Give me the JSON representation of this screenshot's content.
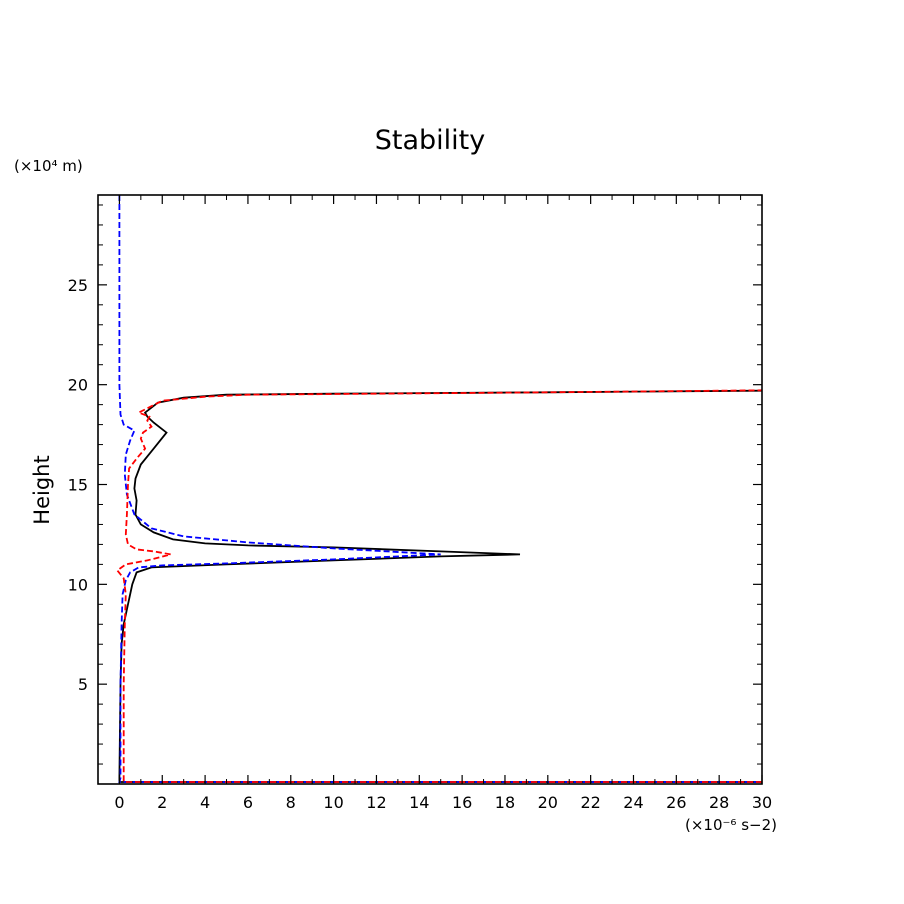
{
  "chart_data": {
    "type": "line",
    "title": "Stability",
    "ylabel": "Height",
    "ylabel_units": "(×10⁴ m)",
    "xlabel_units": "(×10⁻⁶ s−2)",
    "xlim": [
      -1,
      30
    ],
    "ylim": [
      0,
      29.5
    ],
    "x_ticks": [
      0,
      2,
      4,
      6,
      8,
      10,
      12,
      14,
      16,
      18,
      20,
      22,
      24,
      26,
      28,
      30
    ],
    "y_ticks": [
      5,
      10,
      15,
      20,
      25
    ],
    "grid": false,
    "legend": "none",
    "series": [
      {
        "style": "solid",
        "color": "#000000",
        "points": [
          [
            30,
            0.1
          ],
          [
            0,
            0.1
          ],
          [
            0,
            0.3
          ],
          [
            0.05,
            5
          ],
          [
            0.1,
            7
          ],
          [
            0.2,
            8
          ],
          [
            0.4,
            9
          ],
          [
            0.6,
            10
          ],
          [
            0.8,
            10.6
          ],
          [
            1.5,
            10.85
          ],
          [
            5,
            11.0
          ],
          [
            10,
            11.2
          ],
          [
            15,
            11.4
          ],
          [
            18.7,
            11.5
          ],
          [
            15,
            11.65
          ],
          [
            10,
            11.85
          ],
          [
            6,
            11.95
          ],
          [
            4,
            12.05
          ],
          [
            2.5,
            12.25
          ],
          [
            1.6,
            12.6
          ],
          [
            1,
            13
          ],
          [
            0.75,
            13.5
          ],
          [
            0.8,
            14.2
          ],
          [
            0.7,
            14.8
          ],
          [
            0.75,
            15.3
          ],
          [
            1.0,
            16
          ],
          [
            1.6,
            16.8
          ],
          [
            2.2,
            17.6
          ],
          [
            1.6,
            18.1
          ],
          [
            1.3,
            18.4
          ],
          [
            1.2,
            18.6
          ],
          [
            1.8,
            19.1
          ],
          [
            3,
            19.35
          ],
          [
            5,
            19.5
          ],
          [
            10,
            19.55
          ],
          [
            20,
            19.62
          ],
          [
            30,
            19.7
          ]
        ]
      },
      {
        "style": "dashed",
        "color": "#0000ff",
        "points": [
          [
            0,
            29.5
          ],
          [
            0,
            25
          ],
          [
            0,
            20
          ],
          [
            0.05,
            18.5
          ],
          [
            0.2,
            18.0
          ],
          [
            0.7,
            17.7
          ],
          [
            0.5,
            17.2
          ],
          [
            0.3,
            16.5
          ],
          [
            0.25,
            15.5
          ],
          [
            0.35,
            14.5
          ],
          [
            0.7,
            13.5
          ],
          [
            1.5,
            12.8
          ],
          [
            3,
            12.4
          ],
          [
            6,
            12.1
          ],
          [
            10,
            11.8
          ],
          [
            15,
            11.5
          ],
          [
            10,
            11.25
          ],
          [
            5,
            11.05
          ],
          [
            2,
            10.95
          ],
          [
            0.9,
            10.85
          ],
          [
            0.5,
            10.6
          ],
          [
            0.3,
            10.2
          ],
          [
            0.15,
            9.5
          ],
          [
            0.1,
            8
          ],
          [
            0.05,
            5
          ],
          [
            0.05,
            0.3
          ],
          [
            0,
            0.1
          ],
          [
            30,
            0.1
          ]
        ]
      },
      {
        "style": "dashed",
        "color": "#ff0000",
        "points": [
          [
            30,
            0.1
          ],
          [
            0.2,
            0.1
          ],
          [
            0.2,
            0.3
          ],
          [
            0.2,
            5
          ],
          [
            0.25,
            8
          ],
          [
            0.3,
            9.5
          ],
          [
            0.2,
            10.3
          ],
          [
            -0.1,
            10.7
          ],
          [
            0.3,
            11.0
          ],
          [
            1.3,
            11.2
          ],
          [
            2.4,
            11.5
          ],
          [
            1.6,
            11.65
          ],
          [
            0.8,
            11.75
          ],
          [
            0.4,
            12
          ],
          [
            0.3,
            12.5
          ],
          [
            0.35,
            13.5
          ],
          [
            0.4,
            15
          ],
          [
            0.45,
            15.8
          ],
          [
            0.8,
            16.3
          ],
          [
            1.2,
            16.8
          ],
          [
            1.0,
            17.3
          ],
          [
            1.1,
            17.6
          ],
          [
            1.5,
            17.9
          ],
          [
            1.3,
            18.2
          ],
          [
            1.4,
            18.4
          ],
          [
            0.9,
            18.6
          ],
          [
            2.0,
            19.2
          ],
          [
            4,
            19.4
          ],
          [
            6,
            19.5
          ],
          [
            12,
            19.55
          ],
          [
            20,
            19.62
          ],
          [
            30,
            19.72
          ]
        ]
      }
    ]
  }
}
